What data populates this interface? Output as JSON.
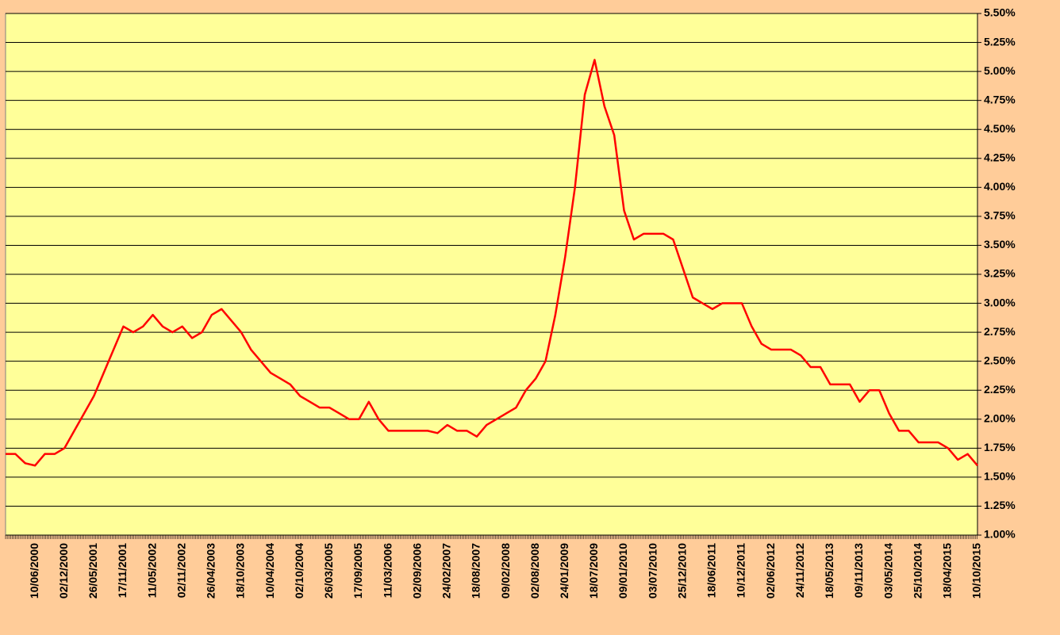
{
  "chart_data": {
    "type": "line",
    "categories": [
      null,
      null,
      null,
      "10/06/2000",
      null,
      null,
      "02/12/2000",
      null,
      null,
      "26/05/2001",
      null,
      null,
      "17/11/2001",
      null,
      null,
      "11/05/2002",
      null,
      null,
      "02/11/2002",
      null,
      null,
      "26/04/2003",
      null,
      null,
      "18/10/2003",
      null,
      null,
      "10/04/2004",
      null,
      null,
      "02/10/2004",
      null,
      null,
      "26/03/2005",
      null,
      null,
      "17/09/2005",
      null,
      null,
      "11/03/2006",
      null,
      null,
      "02/09/2006",
      null,
      null,
      "24/02/2007",
      null,
      null,
      "18/08/2007",
      null,
      null,
      "09/02/2008",
      null,
      null,
      "02/08/2008",
      null,
      null,
      "24/01/2009",
      null,
      null,
      "18/07/2009",
      null,
      null,
      "09/01/2010",
      null,
      null,
      "03/07/2010",
      null,
      null,
      "25/12/2010",
      null,
      null,
      "18/06/2011",
      null,
      null,
      "10/12/2011",
      null,
      null,
      "02/06/2012",
      null,
      null,
      "24/11/2012",
      null,
      null,
      "18/05/2013",
      null,
      null,
      "09/11/2013",
      null,
      null,
      "03/05/2014",
      null,
      null,
      "25/10/2014",
      null,
      null,
      "18/04/2015",
      null,
      null,
      "10/10/2015"
    ],
    "series": [
      {
        "color": "#ff0000",
        "values": [
          1.7,
          1.7,
          1.62,
          1.6,
          1.7,
          1.7,
          1.75,
          1.9,
          2.05,
          2.2,
          2.4,
          2.6,
          2.8,
          2.75,
          2.8,
          2.9,
          2.8,
          2.75,
          2.8,
          2.7,
          2.75,
          2.9,
          2.95,
          2.85,
          2.75,
          2.6,
          2.5,
          2.4,
          2.35,
          2.3,
          2.2,
          2.15,
          2.1,
          2.1,
          2.05,
          2.0,
          2.0,
          2.15,
          2.0,
          1.9,
          1.9,
          1.9,
          1.9,
          1.9,
          1.88,
          1.95,
          1.9,
          1.9,
          1.85,
          1.95,
          2.0,
          2.05,
          2.1,
          2.25,
          2.35,
          2.5,
          2.9,
          3.4,
          4.0,
          4.8,
          5.1,
          4.7,
          4.45,
          3.8,
          3.55,
          3.6,
          3.6,
          3.6,
          3.55,
          3.3,
          3.05,
          3.0,
          2.95,
          3.0,
          3.0,
          3.0,
          2.8,
          2.65,
          2.6,
          2.6,
          2.6,
          2.55,
          2.45,
          2.45,
          2.3,
          2.3,
          2.3,
          2.15,
          2.25,
          2.25,
          2.05,
          1.9,
          1.9,
          1.8,
          1.8,
          1.8,
          1.75,
          1.65,
          1.7,
          1.6
        ]
      }
    ],
    "ylim": [
      1,
      5.5
    ],
    "yticks": [
      {
        "value": 1,
        "label": "1.00%"
      },
      {
        "value": 1.25,
        "label": "1.25%"
      },
      {
        "value": 1.5,
        "label": "1.50%"
      },
      {
        "value": 1.75,
        "label": "1.75%"
      },
      {
        "value": 2,
        "label": "2.00%"
      },
      {
        "value": 2.25,
        "label": "2.25%"
      },
      {
        "value": 2.5,
        "label": "2.50%"
      },
      {
        "value": 2.75,
        "label": "2.75%"
      },
      {
        "value": 3,
        "label": "3.00%"
      },
      {
        "value": 3.25,
        "label": "3.25%"
      },
      {
        "value": 3.5,
        "label": "3.50%"
      },
      {
        "value": 3.75,
        "label": "3.75%"
      },
      {
        "value": 4,
        "label": "4.00%"
      },
      {
        "value": 4.25,
        "label": "4.25%"
      },
      {
        "value": 4.5,
        "label": "4.50%"
      },
      {
        "value": 4.75,
        "label": "4.75%"
      },
      {
        "value": 5,
        "label": "5.00%"
      },
      {
        "value": 5.25,
        "label": "5.25%"
      },
      {
        "value": 5.5,
        "label": "5.50%"
      }
    ],
    "grid": true
  }
}
